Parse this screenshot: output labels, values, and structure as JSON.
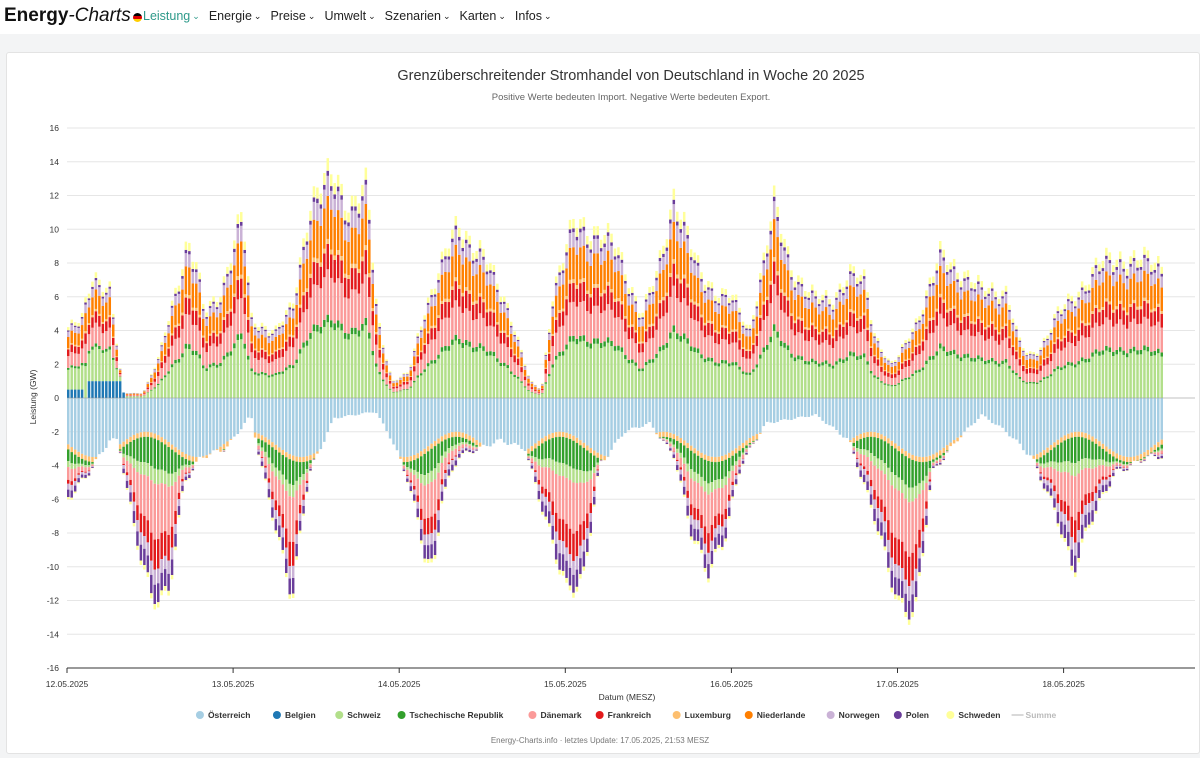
{
  "nav": {
    "brand_part1": "Energy",
    "brand_part2": "-Charts",
    "items": [
      "Leistung",
      "Energie",
      "Preise",
      "Umwelt",
      "Szenarien",
      "Karten",
      "Infos"
    ],
    "active_index": 0
  },
  "colors": {
    "accent": "#2e9a8a",
    "flag": [
      "#000000",
      "#dd0000",
      "#ffce00"
    ]
  },
  "chart_data": {
    "type": "bar",
    "stacked": true,
    "title": "Grenzüberschreitender Stromhandel von Deutschland in Woche 20 2025",
    "subtitle": "Positive Werte bedeuten Import. Negative Werte bedeuten Export.",
    "xlabel": "Datum (MESZ)",
    "ylabel": "Leistung (GW)",
    "ylim": [
      -16,
      16
    ],
    "yticks": [
      16,
      14,
      12,
      10,
      8,
      6,
      4,
      2,
      0,
      -2,
      -4,
      -6,
      -8,
      -10,
      -12,
      -14,
      -16
    ],
    "xticks": [
      "12.05.2025",
      "13.05.2025",
      "14.05.2025",
      "15.05.2025",
      "16.05.2025",
      "17.05.2025",
      "18.05.2025"
    ],
    "days": 7,
    "bars_per_day": 48,
    "import_total_keyframes": [
      [
        0,
        4.2
      ],
      [
        0.08,
        4.6
      ],
      [
        0.15,
        7.5
      ],
      [
        0.25,
        6.5
      ],
      [
        0.28,
        4.2
      ],
      [
        0.33,
        0.3
      ],
      [
        0.45,
        0.3
      ],
      [
        0.55,
        2.5
      ],
      [
        0.72,
        9.5
      ],
      [
        0.78,
        7.5
      ],
      [
        0.82,
        5.0
      ],
      [
        0.92,
        6.5
      ],
      [
        1.05,
        11.0
      ],
      [
        1.1,
        4.8
      ],
      [
        1.15,
        4.5
      ],
      [
        1.25,
        4.0
      ],
      [
        1.35,
        5.5
      ],
      [
        1.45,
        11.5
      ],
      [
        1.6,
        13.5
      ],
      [
        1.7,
        11.5
      ],
      [
        1.8,
        12.5
      ],
      [
        1.86,
        5.0
      ],
      [
        1.95,
        1.0
      ],
      [
        2.05,
        1.5
      ],
      [
        2.15,
        5.5
      ],
      [
        2.35,
        10.5
      ],
      [
        2.5,
        8.5
      ],
      [
        2.65,
        5.5
      ],
      [
        2.78,
        1.0
      ],
      [
        2.85,
        0.5
      ],
      [
        2.92,
        6.5
      ],
      [
        3.05,
        10.5
      ],
      [
        3.2,
        10.0
      ],
      [
        3.3,
        9.0
      ],
      [
        3.4,
        6.5
      ],
      [
        3.45,
        5.0
      ],
      [
        3.55,
        7.5
      ],
      [
        3.65,
        12.5
      ],
      [
        3.75,
        9.0
      ],
      [
        3.8,
        7.5
      ],
      [
        3.9,
        6.5
      ],
      [
        4.0,
        6.0
      ],
      [
        4.1,
        4.0
      ],
      [
        4.25,
        11.5
      ],
      [
        4.35,
        8.0
      ],
      [
        4.45,
        6.5
      ],
      [
        4.5,
        6.0
      ],
      [
        4.6,
        6.0
      ],
      [
        4.7,
        7.5
      ],
      [
        4.8,
        7.0
      ],
      [
        4.85,
        4.0
      ],
      [
        4.95,
        2.0
      ],
      [
        5.0,
        2.5
      ],
      [
        5.1,
        4.5
      ],
      [
        5.25,
        8.5
      ],
      [
        5.4,
        7.5
      ],
      [
        5.5,
        6.5
      ],
      [
        5.65,
        6.5
      ],
      [
        5.72,
        3.5
      ],
      [
        5.78,
        2.5
      ],
      [
        5.85,
        3.0
      ],
      [
        5.95,
        5.0
      ],
      [
        6.05,
        6.0
      ],
      [
        6.12,
        7.0
      ],
      [
        6.2,
        8.0
      ],
      [
        6.35,
        8.5
      ],
      [
        6.6,
        8.0
      ]
    ],
    "export_total_keyframes": [
      [
        0,
        -6.0
      ],
      [
        0.1,
        -4.8
      ],
      [
        0.25,
        -2.5
      ],
      [
        0.3,
        -2.5
      ],
      [
        0.4,
        -8.0
      ],
      [
        0.5,
        -12.0
      ],
      [
        0.6,
        -12.0
      ],
      [
        0.7,
        -5.0
      ],
      [
        0.8,
        -3.5
      ],
      [
        0.95,
        -3.0
      ],
      [
        1.1,
        -1.0
      ],
      [
        1.15,
        -3.5
      ],
      [
        1.3,
        -10.0
      ],
      [
        1.35,
        -12.0
      ],
      [
        1.4,
        -8.0
      ],
      [
        1.45,
        -4.5
      ],
      [
        1.6,
        -1.2
      ],
      [
        1.85,
        -0.8
      ],
      [
        1.95,
        -2.5
      ],
      [
        2.05,
        -5.0
      ],
      [
        2.15,
        -9.5
      ],
      [
        2.2,
        -10.5
      ],
      [
        2.25,
        -6.0
      ],
      [
        2.35,
        -3.5
      ],
      [
        2.6,
        -2.5
      ],
      [
        2.75,
        -3.0
      ],
      [
        2.85,
        -6.5
      ],
      [
        3.0,
        -11.5
      ],
      [
        3.1,
        -11.0
      ],
      [
        3.2,
        -4.0
      ],
      [
        3.35,
        -2.0
      ],
      [
        3.5,
        -1.5
      ],
      [
        3.65,
        -3.5
      ],
      [
        3.75,
        -8.0
      ],
      [
        3.85,
        -10.5
      ],
      [
        3.95,
        -8.5
      ],
      [
        4.05,
        -4.0
      ],
      [
        4.2,
        -1.5
      ],
      [
        4.5,
        -1.0
      ],
      [
        4.7,
        -2.5
      ],
      [
        4.85,
        -7.0
      ],
      [
        5.0,
        -12.5
      ],
      [
        5.1,
        -13.0
      ],
      [
        5.2,
        -4.5
      ],
      [
        5.35,
        -2.5
      ],
      [
        5.5,
        -1.0
      ],
      [
        5.65,
        -2.0
      ],
      [
        5.8,
        -3.5
      ],
      [
        5.95,
        -7.0
      ],
      [
        6.05,
        -10.5
      ],
      [
        6.15,
        -7.5
      ],
      [
        6.3,
        -4.5
      ],
      [
        6.5,
        -3.5
      ],
      [
        6.6,
        -3.5
      ]
    ],
    "series": [
      {
        "name": "Österreich",
        "color": "#a6cee3"
      },
      {
        "name": "Belgien",
        "color": "#1f78b4"
      },
      {
        "name": "Schweiz",
        "color": "#b2df8a"
      },
      {
        "name": "Tschechische Republik",
        "color": "#33a02c"
      },
      {
        "name": "Dänemark",
        "color": "#fb9a99"
      },
      {
        "name": "Frankreich",
        "color": "#e31a1c"
      },
      {
        "name": "Luxemburg",
        "color": "#fdbf6f"
      },
      {
        "name": "Niederlande",
        "color": "#ff7f00"
      },
      {
        "name": "Norwegen",
        "color": "#cab2d6"
      },
      {
        "name": "Polen",
        "color": "#6a3d9a"
      },
      {
        "name": "Schweden",
        "color": "#ffff99"
      },
      {
        "name": "Summe",
        "color": "#cccccc",
        "line": true
      }
    ]
  },
  "source_text": "Energy-Charts.info · letztes Update: 17.05.2025, 21:53 MESZ"
}
